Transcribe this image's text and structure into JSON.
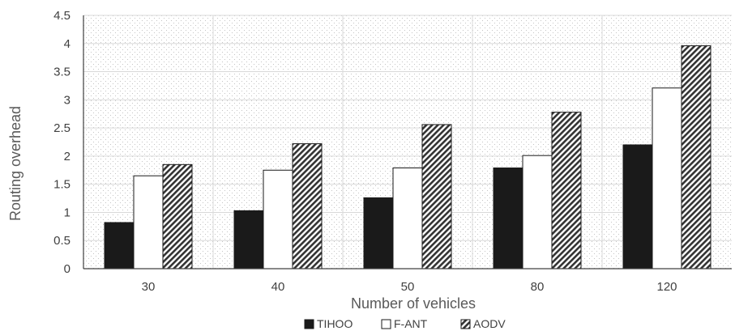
{
  "chart_data": {
    "type": "bar",
    "categories": [
      "30",
      "40",
      "50",
      "80",
      "120"
    ],
    "series": [
      {
        "name": "TIHOO",
        "values": [
          0.82,
          1.03,
          1.26,
          1.79,
          2.2
        ],
        "color": "#1a1a1a",
        "pattern": "solid"
      },
      {
        "name": "F-ANT",
        "values": [
          1.65,
          1.75,
          1.79,
          2.01,
          3.21
        ],
        "color": "#ffffff",
        "pattern": "none"
      },
      {
        "name": "AODV",
        "values": [
          1.85,
          2.22,
          2.56,
          2.78,
          3.96
        ],
        "color": "#333333",
        "pattern": "diagonal-stripes"
      }
    ],
    "xlabel": "Number of vehicles",
    "ylabel": "Routing overhead",
    "ylim": [
      0,
      4.5
    ],
    "yticks": [
      "0",
      "0.5",
      "1",
      "1.5",
      "2",
      "2.5",
      "3",
      "3.5",
      "4",
      "4.5"
    ],
    "grid": true,
    "background_pattern": "dotted",
    "legend_position": "bottom-center"
  }
}
